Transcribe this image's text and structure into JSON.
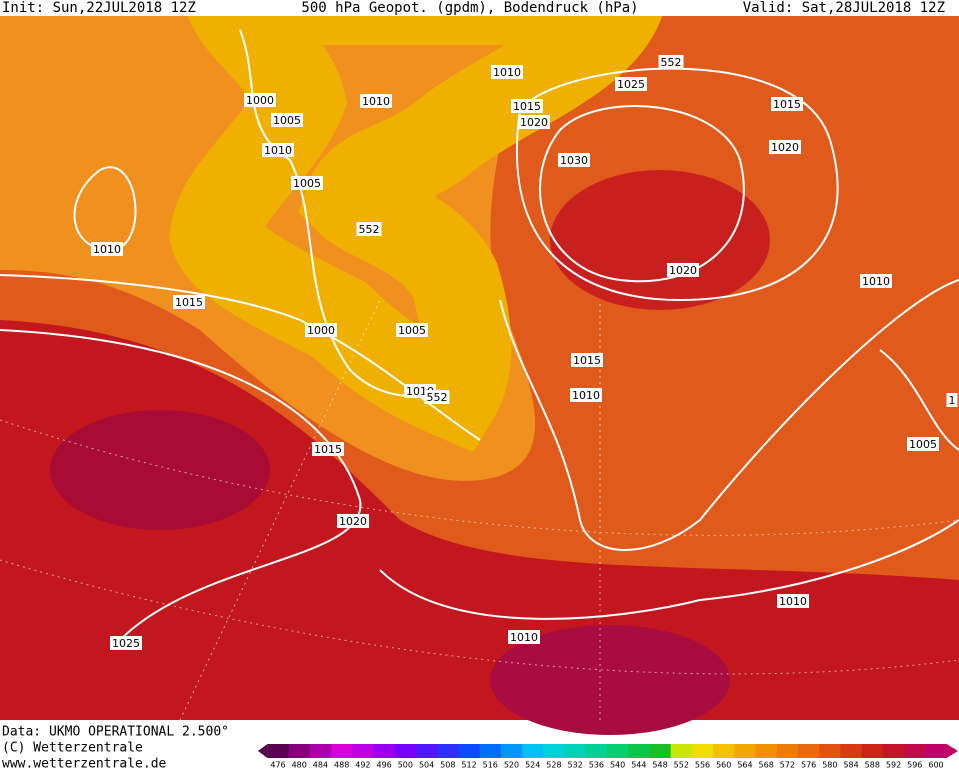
{
  "header": {
    "init": "Init: Sun,22JUL2018 12Z",
    "title": "500 hPa Geopot. (gpdm), Bodendruck (hPa)",
    "valid": "Valid: Sat,28JUL2018 12Z"
  },
  "map": {
    "labels": [
      "1000",
      "1005",
      "1010",
      "1005",
      "1010",
      "1010",
      "1015",
      "1020",
      "1025",
      "552",
      "1030",
      "1015",
      "1020",
      "1010",
      "1015",
      "552",
      "1000",
      "1005",
      "1010",
      "552",
      "1020",
      "1010",
      "1015",
      "1010",
      "1015",
      "1020",
      "1005",
      "1010",
      "1010",
      "1025",
      "1"
    ]
  },
  "footer": {
    "data": "Data: UKMO OPERATIONAL 2.500°",
    "copyright": "(C) Wetterzentrale",
    "url": "www.wetterzentrale.de"
  },
  "colorbar": {
    "ticks": [
      476,
      480,
      484,
      488,
      492,
      496,
      500,
      504,
      508,
      512,
      516,
      520,
      524,
      528,
      532,
      536,
      540,
      544,
      548,
      552,
      556,
      560,
      564,
      568,
      572,
      576,
      580,
      584,
      588,
      592,
      596,
      600
    ]
  }
}
